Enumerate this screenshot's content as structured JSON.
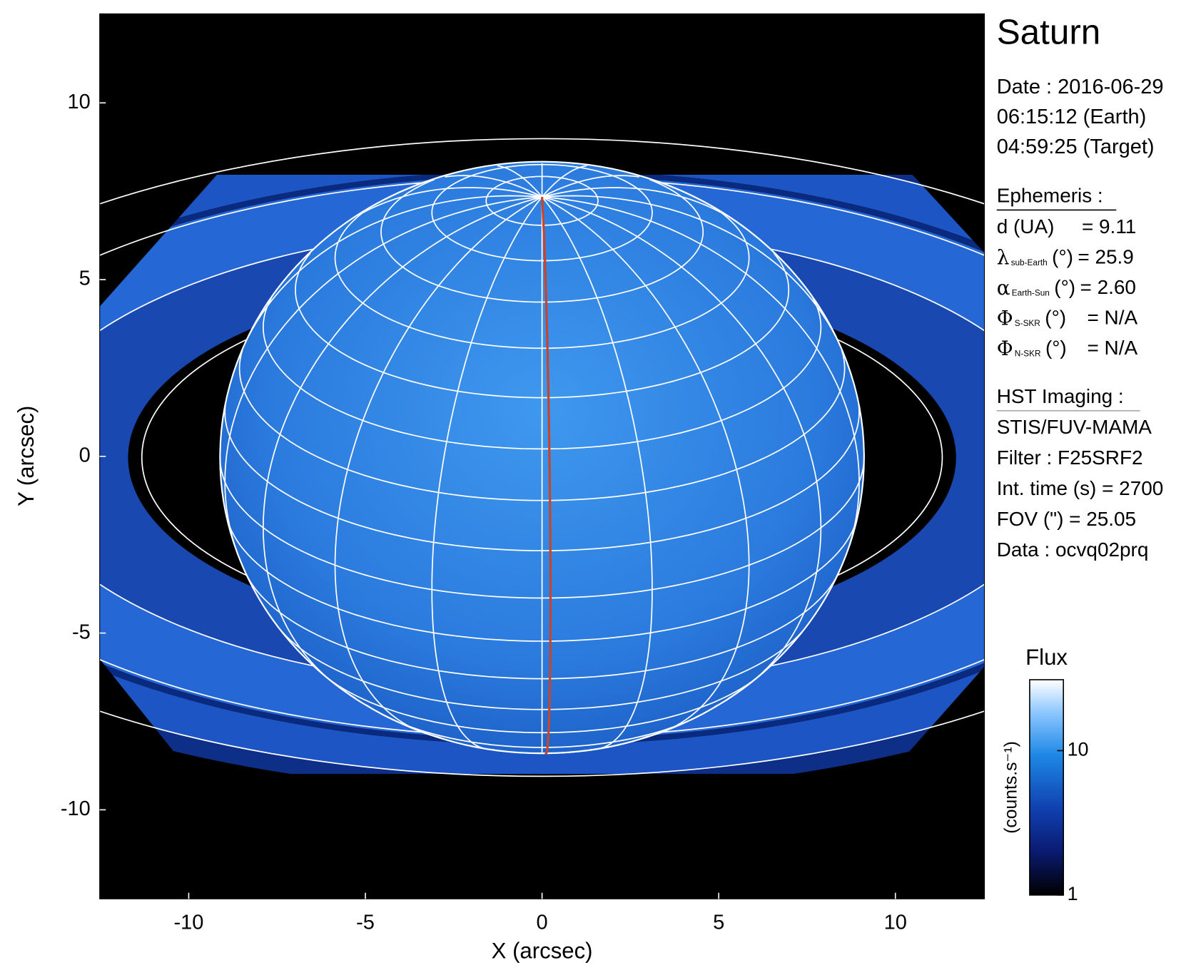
{
  "chart_data": {
    "type": "image",
    "xlabel": "X (arcsec)",
    "ylabel": "Y (arcsec)",
    "xlim": [
      -12.52,
      12.52
    ],
    "ylim": [
      -12.52,
      12.52
    ],
    "xticks": [
      -10,
      -5,
      0,
      5,
      10
    ],
    "yticks": [
      -10,
      -5,
      0,
      5,
      10
    ],
    "colorbar": {
      "title": "Flux",
      "label": "(counts.s⁻¹)",
      "lim": [
        1,
        31
      ],
      "ticks": [
        1,
        10
      ],
      "log": true
    }
  },
  "info_panel": {
    "title": "Saturn",
    "date": [
      "Date : 2016-06-29",
      "06:15:12 (Earth)",
      "04:59:25 (Target)"
    ],
    "ephemeris": {
      "heading": "Ephemeris :",
      "rows": [
        {
          "label": "d (UA)",
          "value": "= 9.11"
        },
        {
          "symbol": "λ",
          "sub": "sub-Earth",
          "unit": "(°)",
          "value": "= 25.9"
        },
        {
          "symbol": "α",
          "sub": "Earth-Sun",
          "unit": "(°)",
          "value": "= 2.60"
        },
        {
          "symbol": "Φ",
          "sub": "S-SKR",
          "unit": "(°)",
          "value": "= N/A"
        },
        {
          "symbol": "Φ",
          "sub": "N-SKR",
          "unit": "(°)",
          "value": "= N/A"
        }
      ]
    },
    "imaging": {
      "heading": "HST Imaging :",
      "rows": [
        "STIS/FUV-MAMA",
        "Filter : F25SRF2",
        "Int. time (s) = 2700",
        "FOV (\") = 25.05",
        "Data : ocvq02prq"
      ]
    }
  }
}
